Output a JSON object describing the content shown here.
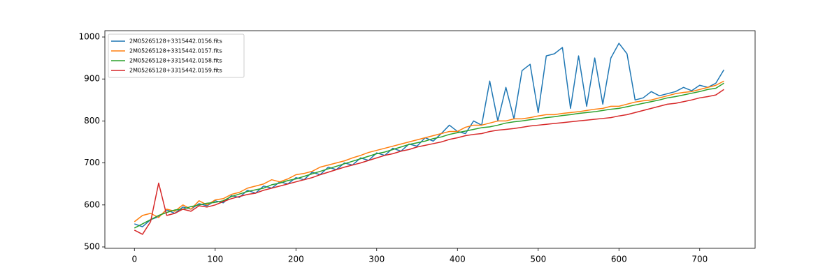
{
  "chart_data": {
    "type": "line",
    "x": [
      0,
      10,
      20,
      30,
      40,
      50,
      60,
      70,
      80,
      90,
      100,
      110,
      120,
      130,
      140,
      150,
      160,
      170,
      180,
      190,
      200,
      210,
      220,
      230,
      240,
      250,
      260,
      270,
      280,
      290,
      300,
      310,
      320,
      330,
      340,
      350,
      360,
      370,
      380,
      390,
      400,
      410,
      420,
      430,
      440,
      450,
      460,
      470,
      480,
      490,
      500,
      510,
      520,
      530,
      540,
      550,
      560,
      570,
      580,
      590,
      600,
      610,
      620,
      630,
      640,
      650,
      660,
      670,
      680,
      690,
      700,
      710,
      720,
      730
    ],
    "series": [
      {
        "name": "2M05265128+3315442.0156.fits",
        "color": "#1f77b4",
        "values": [
          555,
          548,
          565,
          572,
          588,
          580,
          595,
          590,
          603,
          598,
          610,
          605,
          622,
          618,
          635,
          628,
          645,
          640,
          655,
          650,
          665,
          660,
          678,
          672,
          690,
          684,
          700,
          695,
          712,
          706,
          724,
          718,
          735,
          728,
          745,
          740,
          760,
          752,
          770,
          790,
          775,
          770,
          800,
          790,
          895,
          800,
          880,
          805,
          920,
          935,
          820,
          955,
          960,
          975,
          830,
          955,
          835,
          950,
          840,
          950,
          985,
          960,
          850,
          855,
          870,
          860,
          865,
          870,
          880,
          872,
          885,
          880,
          890,
          922
        ]
      },
      {
        "name": "2M05265128+3315442.0157.fits",
        "color": "#ff7f0e",
        "values": [
          560,
          575,
          580,
          570,
          590,
          585,
          600,
          590,
          610,
          600,
          612,
          615,
          625,
          630,
          640,
          645,
          650,
          660,
          655,
          662,
          672,
          675,
          680,
          690,
          695,
          700,
          705,
          712,
          718,
          725,
          730,
          735,
          740,
          745,
          750,
          755,
          760,
          765,
          770,
          775,
          775,
          785,
          790,
          790,
          795,
          800,
          800,
          805,
          805,
          808,
          812,
          815,
          815,
          818,
          820,
          822,
          825,
          828,
          830,
          835,
          835,
          840,
          845,
          848,
          850,
          855,
          860,
          865,
          868,
          870,
          875,
          880,
          885,
          895
        ]
      },
      {
        "name": "2M05265128+3315442.0158.fits",
        "color": "#2ca02c",
        "values": [
          545,
          555,
          565,
          575,
          582,
          588,
          590,
          596,
          600,
          604,
          606,
          610,
          620,
          626,
          632,
          636,
          640,
          648,
          652,
          658,
          662,
          668,
          674,
          680,
          686,
          692,
          698,
          704,
          710,
          716,
          722,
          726,
          732,
          738,
          744,
          748,
          752,
          758,
          762,
          768,
          772,
          776,
          780,
          784,
          786,
          790,
          795,
          798,
          800,
          803,
          805,
          808,
          810,
          813,
          815,
          818,
          820,
          822,
          825,
          828,
          830,
          834,
          838,
          842,
          846,
          850,
          855,
          858,
          862,
          866,
          870,
          875,
          878,
          890
        ]
      },
      {
        "name": "2M05265128+3315442.0159.fits",
        "color": "#d62728",
        "values": [
          540,
          530,
          560,
          652,
          575,
          580,
          590,
          585,
          598,
          595,
          600,
          608,
          615,
          620,
          625,
          628,
          635,
          640,
          645,
          650,
          655,
          660,
          665,
          672,
          678,
          684,
          690,
          695,
          700,
          706,
          712,
          718,
          722,
          728,
          732,
          738,
          742,
          746,
          750,
          756,
          760,
          765,
          768,
          770,
          775,
          778,
          780,
          782,
          785,
          788,
          790,
          792,
          794,
          796,
          798,
          800,
          802,
          804,
          806,
          808,
          812,
          815,
          820,
          825,
          830,
          835,
          840,
          842,
          846,
          850,
          855,
          858,
          862,
          875
        ]
      }
    ],
    "xlim": [
      -36.6,
      768.6
    ],
    "ylim": [
      496.7,
      1015
    ],
    "xticks": [
      0,
      100,
      200,
      300,
      400,
      500,
      600,
      700
    ],
    "yticks": [
      500,
      600,
      700,
      800,
      900,
      1000
    ],
    "legend": "upper left"
  }
}
